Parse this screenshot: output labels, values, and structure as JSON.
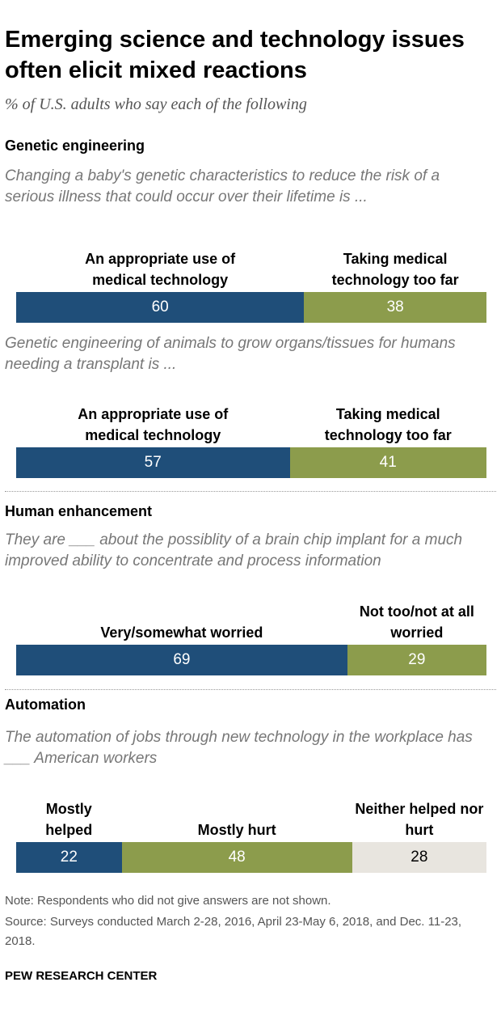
{
  "title": "Emerging science and technology issues often elicit mixed reactions",
  "subtitle": "% of U.S. adults who say each of the following",
  "note": "Note: Respondents who did not give answers are not shown.",
  "source": "Source: Surveys conducted March 2-28, 2016, April 23-May 6, 2018, and Dec. 11-23, 2018.",
  "credit": "PEW RESEARCH CENTER",
  "colors": {
    "blue": "#1f4e79",
    "green": "#8c9c4c",
    "light": "#e8e5df"
  },
  "chart_data": [
    {
      "type": "bar",
      "section": "Genetic engineering",
      "question": "Changing a baby's genetic characteristics to reduce the risk of a serious illness that could occur over their lifetime is ...",
      "categories": [
        "An appropriate use of medical technology",
        "Taking medical technology too far"
      ],
      "values": [
        60,
        38
      ]
    },
    {
      "type": "bar",
      "question": "Genetic engineering of animals to grow organs/tissues for humans needing a transplant is ...",
      "categories": [
        "An appropriate use of medical technology",
        "Taking medical technology too far"
      ],
      "values": [
        57,
        41
      ]
    },
    {
      "type": "bar",
      "section": "Human enhancement",
      "question": "They are ___ about the possiblity of a brain chip implant for a much improved ability to concentrate and process information",
      "categories": [
        "Very/somewhat worried",
        "Not too/not at all worried"
      ],
      "values": [
        69,
        29
      ]
    },
    {
      "type": "bar",
      "section": "Automation",
      "question": "The automation of jobs through new technology in the workplace has ___ American workers",
      "categories": [
        "Mostly helped",
        "Mostly hurt",
        "Neither helped nor hurt"
      ],
      "values": [
        22,
        48,
        28
      ]
    }
  ]
}
